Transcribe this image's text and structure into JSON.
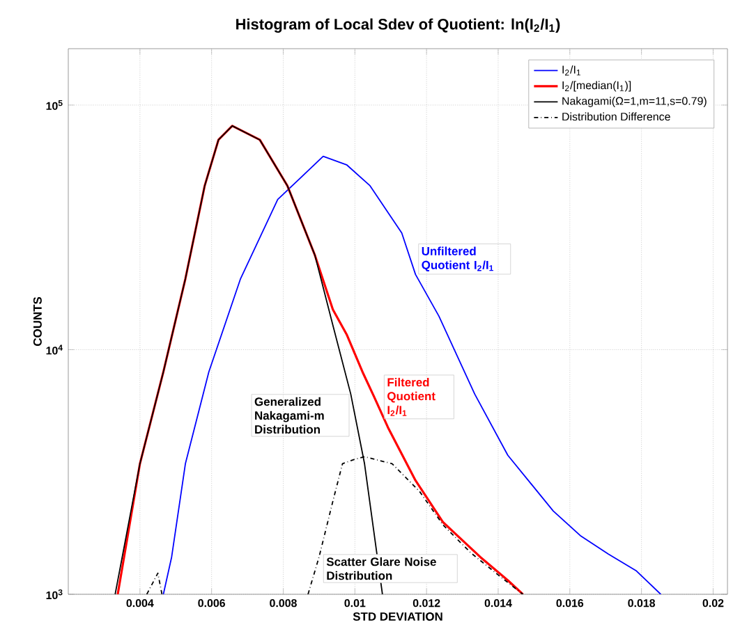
{
  "chart_data": {
    "type": "line",
    "title": "Histogram of Local Sdev of Quotient: ln(I$_{2}$/I$_{1}$)",
    "xlabel": "STD DEVIATION",
    "ylabel": "COUNTS",
    "xlim": [
      0.002,
      0.0204
    ],
    "ylim": [
      1000,
      170000
    ],
    "log": "y",
    "xticks": [
      0.004,
      0.006,
      0.008,
      0.01,
      0.012,
      0.014,
      0.016,
      0.018,
      0.02
    ],
    "yticks": [
      {
        "value": 1000,
        "label": "10$^{3}$"
      },
      {
        "value": 10000,
        "label": "10$^{4}$"
      },
      {
        "value": 100000,
        "label": "10$^{5}$"
      }
    ],
    "grid": true,
    "legend": "top right",
    "series": [
      {
        "name": "I$_{2}$/I$_{1}$",
        "color": "#0000ff",
        "line_style": "solid",
        "x": [
          0.004654,
          0.004885,
          0.005269,
          0.005923,
          0.006808,
          0.007846,
          0.009115,
          0.009769,
          0.010423,
          0.011308,
          0.011692,
          0.012346,
          0.013346,
          0.014269,
          0.015538,
          0.016308,
          0.017077,
          0.017846,
          0.018538
        ],
        "values": [
          1000,
          1420,
          3420,
          8110,
          19500,
          41100,
          61700,
          57000,
          46800,
          30000,
          20300,
          13700,
          6580,
          3700,
          2190,
          1730,
          1460,
          1250,
          1000
        ]
      },
      {
        "name": "I$_{2}$/[median(I$_{1}$)]",
        "color": "#ff0000",
        "line_style": "solid",
        "x": [
          0.00338,
          0.004,
          0.004654,
          0.005269,
          0.005808,
          0.006192,
          0.006577,
          0.007346,
          0.008115,
          0.008885,
          0.009385,
          0.009769,
          0.010231,
          0.010538,
          0.010923,
          0.011692,
          0.012462,
          0.0135,
          0.01427,
          0.01469
        ],
        "values": [
          1000,
          3420,
          8110,
          19500,
          46800,
          72100,
          82200,
          72100,
          46800,
          24300,
          14600,
          11550,
          8000,
          6410,
          4810,
          2920,
          1970,
          1420,
          1140,
          1000
        ]
      },
      {
        "name": "Nakagami(Ω=1,m=11,s=0.79)",
        "color": "#000000",
        "line_style": "solid",
        "x": [
          0.003308,
          0.004,
          0.004654,
          0.005269,
          0.005808,
          0.006192,
          0.006577,
          0.007346,
          0.008115,
          0.008885,
          0.009385,
          0.009885,
          0.010269,
          0.010769
        ],
        "values": [
          1000,
          3420,
          8110,
          19500,
          46800,
          72100,
          82200,
          72100,
          46800,
          24300,
          12600,
          6580,
          3420,
          1000
        ]
      },
      {
        "name": "Distribution Difference",
        "color": "#000000",
        "line_style": "dashdot",
        "x": [
          0.004192,
          0.0045,
          0.004615,
          null,
          0.008692,
          0.009,
          0.009385,
          0.009654,
          0.009962,
          0.010269,
          0.011038,
          0.011808,
          0.012462,
          0.013231,
          0.014,
          0.01469
        ],
        "values": [
          1000,
          1220,
          1000,
          null,
          1000,
          1420,
          2400,
          3420,
          3550,
          3650,
          3420,
          2630,
          1920,
          1480,
          1200,
          1000
        ]
      }
    ],
    "annotations": [
      {
        "text": "Unfiltered Quotient I$_{2}$/I$_{1}$",
        "x": 0.011692,
        "y": 20300
      },
      {
        "text": "Filtered Quotient I$_{2}$/I$_{1}$",
        "x": 0.010538,
        "y": 6410
      },
      {
        "text": "Generalized Nakagami-m Distribution",
        "x": 0.009885,
        "y": 6580
      },
      {
        "text": "Scatter Glare Noise Distribution",
        "x": 0.009,
        "y": 1420
      }
    ]
  }
}
